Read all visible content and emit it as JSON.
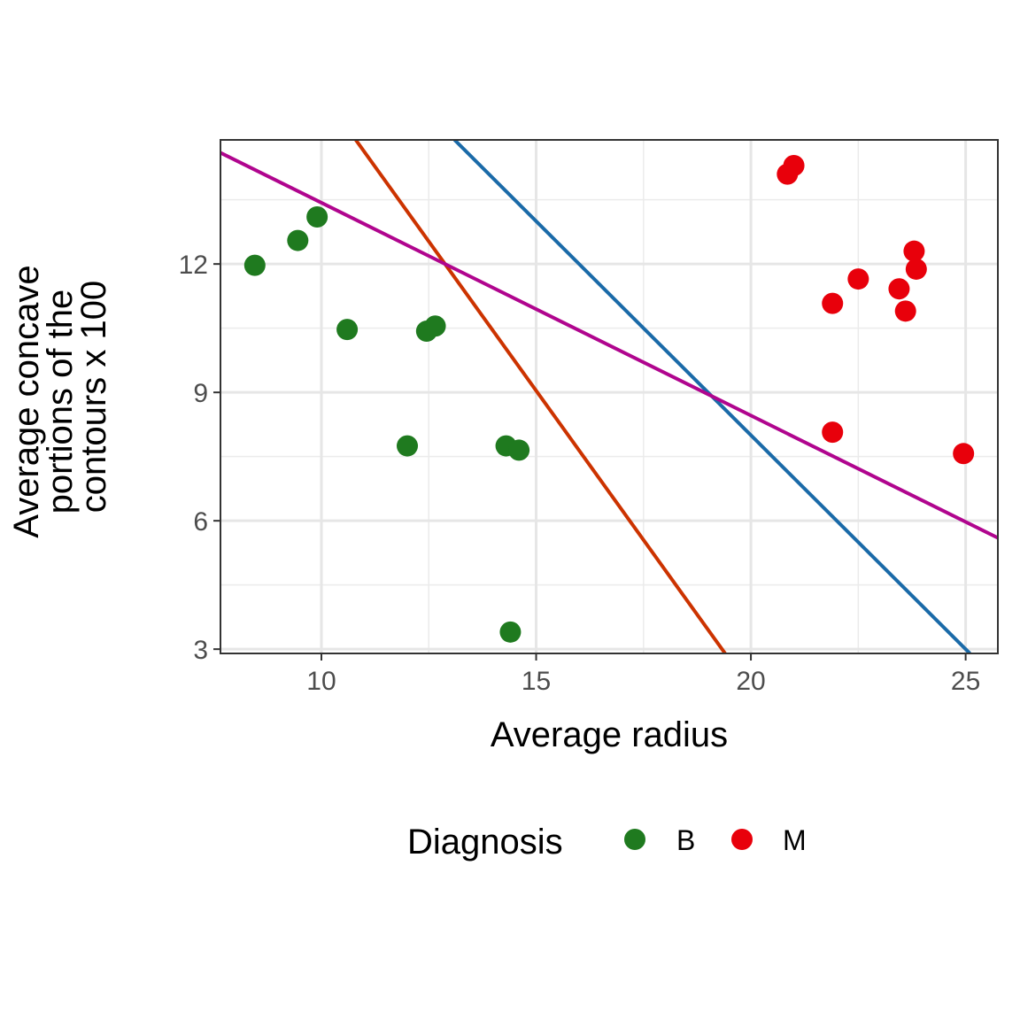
{
  "chart_data": {
    "type": "scatter",
    "xlabel": "Average radius",
    "ylabel_lines": [
      "Average concave",
      "portions of the",
      "contours x 100"
    ],
    "xlim": [
      7.65,
      25.75
    ],
    "ylim": [
      2.9,
      14.9
    ],
    "x_ticks": [
      10,
      15,
      20,
      25
    ],
    "x_tick_labels": [
      "10",
      "15",
      "20",
      "25"
    ],
    "y_ticks": [
      3,
      6,
      9,
      12
    ],
    "y_tick_labels": [
      "3",
      "6",
      "9",
      "12"
    ],
    "grid": true,
    "legend": {
      "title": "Diagnosis",
      "position": "bottom",
      "entries": [
        {
          "label": "B",
          "color": "#1f7a1f"
        },
        {
          "label": "M",
          "color": "#e8000b"
        }
      ]
    },
    "series": [
      {
        "name": "B",
        "color": "#1f7a1f",
        "points": [
          {
            "x": 8.45,
            "y": 11.97
          },
          {
            "x": 9.45,
            "y": 12.55
          },
          {
            "x": 9.9,
            "y": 13.1
          },
          {
            "x": 10.6,
            "y": 10.47
          },
          {
            "x": 12.45,
            "y": 10.43
          },
          {
            "x": 12.65,
            "y": 10.55
          },
          {
            "x": 12.0,
            "y": 7.75
          },
          {
            "x": 14.3,
            "y": 7.75
          },
          {
            "x": 14.6,
            "y": 7.65
          },
          {
            "x": 14.4,
            "y": 3.4
          }
        ]
      },
      {
        "name": "M",
        "color": "#e8000b",
        "points": [
          {
            "x": 20.85,
            "y": 14.1
          },
          {
            "x": 21.0,
            "y": 14.3
          },
          {
            "x": 21.9,
            "y": 11.08
          },
          {
            "x": 22.5,
            "y": 11.65
          },
          {
            "x": 23.45,
            "y": 11.42
          },
          {
            "x": 23.6,
            "y": 10.9
          },
          {
            "x": 23.8,
            "y": 12.3
          },
          {
            "x": 23.85,
            "y": 11.88
          },
          {
            "x": 21.9,
            "y": 8.07
          },
          {
            "x": 24.95,
            "y": 7.57
          }
        ]
      }
    ],
    "lines": [
      {
        "name": "orange-line",
        "color": "#cc3300",
        "from": [
          10.8,
          14.9
        ],
        "to": [
          19.4,
          2.9
        ]
      },
      {
        "name": "blue-line",
        "color": "#1a6aa8",
        "from": [
          13.1,
          14.9
        ],
        "to": [
          25.1,
          2.9
        ]
      },
      {
        "name": "magenta-line",
        "color": "#b0058e",
        "from": [
          7.65,
          14.6
        ],
        "to": [
          25.75,
          5.6
        ]
      }
    ]
  }
}
